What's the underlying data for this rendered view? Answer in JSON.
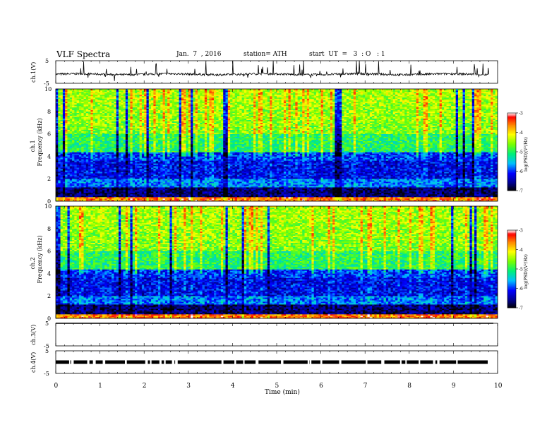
{
  "header": {
    "title": "VLF  Spectra",
    "date": "Jan.  7  , 2016",
    "station": "station= ATH",
    "start": "start  UT  =   3  : O   : 1"
  },
  "chart_data": [
    {
      "type": "line",
      "name": "ch1-waveform",
      "ylabel": "ch.1(V)",
      "yticks": [
        "5",
        "-5"
      ],
      "ylim": [
        -5,
        5
      ],
      "xlim": [
        0,
        10
      ],
      "baseline": 0,
      "x_end": 9.8
    },
    {
      "type": "heatmap",
      "name": "ch1-spectrogram",
      "ylabel": "ch.1  Frequency  (kHz)",
      "ylabel_channel": "ch.1",
      "ylabel_freq": "Frequency  (kHz)",
      "yticks": [
        "0",
        "2",
        "4",
        "6",
        "8",
        "10"
      ],
      "ylim": [
        0,
        10
      ],
      "xlim": [
        0,
        10
      ],
      "colorbar": {
        "label": "log(PSD)(V²/Hz)",
        "ticks": [
          "-3",
          "-4",
          "-5",
          "-6",
          "-7"
        ],
        "range": [
          -7,
          -3
        ]
      }
    },
    {
      "type": "heatmap",
      "name": "ch2-spectrogram",
      "ylabel": "ch.2  Frequency  (kHz)",
      "ylabel_channel": "ch.2",
      "ylabel_freq": "Frequency  (kHz)",
      "yticks": [
        "0",
        "2",
        "4",
        "6",
        "8",
        "10"
      ],
      "ylim": [
        0,
        10
      ],
      "xlim": [
        0,
        10
      ],
      "colorbar": {
        "label": "log(PSD)(V²/Hz)",
        "ticks": [
          "-3",
          "-4",
          "-5",
          "-6",
          "-7"
        ],
        "range": [
          -7,
          -3
        ]
      }
    },
    {
      "type": "line",
      "name": "ch3-waveform",
      "ylabel": "ch.3(V)",
      "yticks": [
        "5",
        "-5"
      ],
      "ylim": [
        -5,
        5
      ],
      "xlim": [
        0,
        10
      ]
    },
    {
      "type": "line",
      "name": "ch4-waveform",
      "ylabel": "ch.4(V)",
      "yticks": [
        "5",
        "-5"
      ],
      "ylim": [
        -5,
        5
      ],
      "xlim": [
        0,
        10
      ]
    }
  ],
  "xaxis": {
    "label": "Time  (min)",
    "ticks": [
      "0",
      "1",
      "2",
      "3",
      "4",
      "5",
      "6",
      "7",
      "8",
      "9",
      "10"
    ],
    "range": [
      0,
      10
    ]
  },
  "colors": {
    "scale": [
      "#000000",
      "#0000ff",
      "#00c8ff",
      "#00ff60",
      "#ffff00",
      "#ff8000",
      "#ff0000",
      "#ffffff"
    ]
  }
}
